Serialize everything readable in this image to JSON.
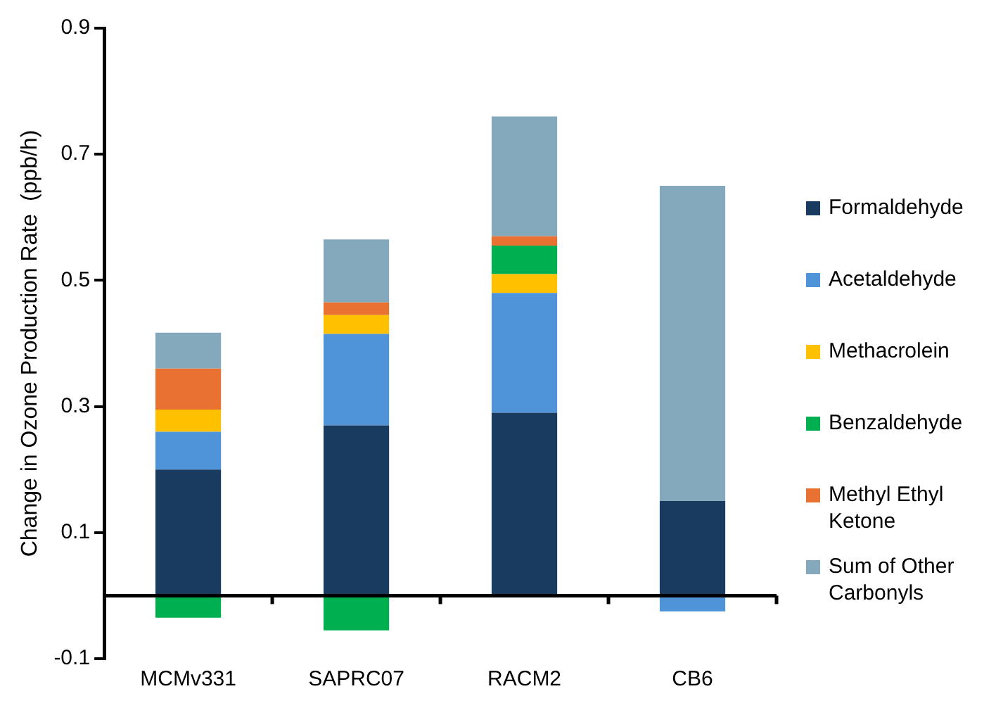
{
  "chart_data": {
    "type": "bar",
    "stacked": true,
    "ylabel": "Change in Ozone Production Rate  (ppb/h)",
    "categories": [
      "MCMv331",
      "SAPRC07",
      "RACM2",
      "CB6"
    ],
    "series": [
      {
        "name": "Formaldehyde",
        "color": "#1a3b60",
        "values": [
          0.2,
          0.27,
          0.29,
          0.15
        ]
      },
      {
        "name": "Acetaldehyde",
        "color": "#4f93d8",
        "values": [
          0.06,
          0.145,
          0.19,
          -0.025
        ]
      },
      {
        "name": "Methacrolein",
        "color": "#ffc000",
        "values": [
          0.035,
          0.03,
          0.03,
          null
        ]
      },
      {
        "name": "Benzaldehyde",
        "color": "#00b050",
        "values": [
          -0.035,
          -0.055,
          0.045,
          null
        ]
      },
      {
        "name": "Methyl Ethyl Ketone",
        "color": "#e97132",
        "values": [
          0.065,
          0.02,
          0.015,
          null
        ]
      },
      {
        "name": "Sum of Other Carbonyls",
        "color": "#84a9bc",
        "values": [
          0.057,
          0.1,
          0.19,
          0.5
        ]
      }
    ],
    "ylim": [
      -0.1,
      0.9
    ],
    "yticks": [
      -0.1,
      0.1,
      0.3,
      0.5,
      0.7,
      0.9
    ],
    "ref_lines": [
      {
        "axis": "y",
        "value": 0,
        "color": "#000000"
      }
    ],
    "grid": false,
    "legend": "right"
  }
}
